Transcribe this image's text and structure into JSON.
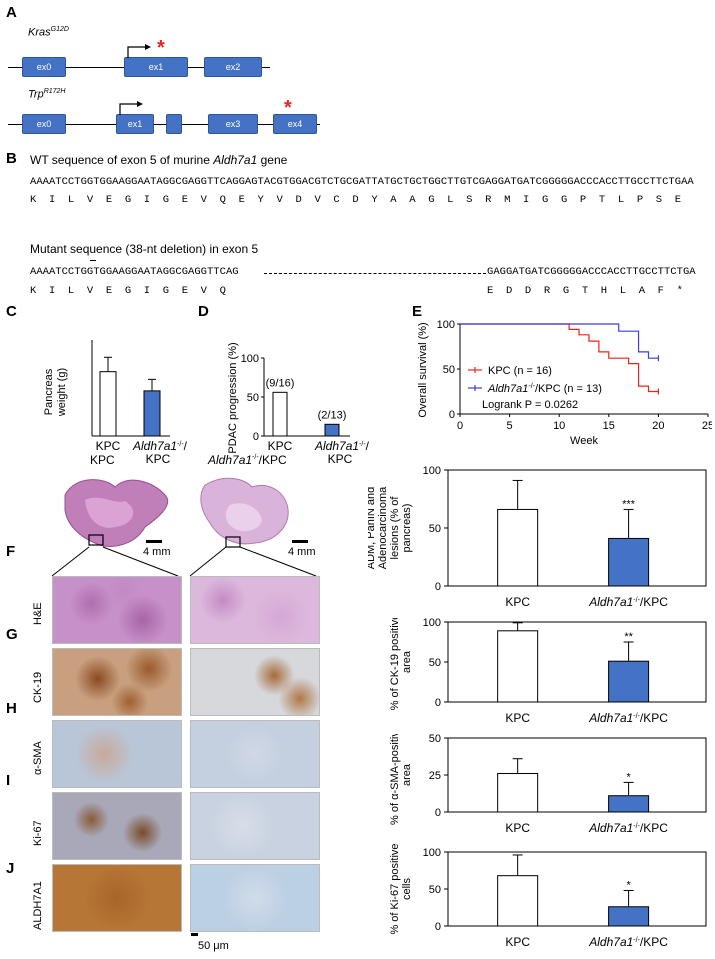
{
  "panels": {
    "A": "A",
    "B": "B",
    "C": "C",
    "D": "D",
    "E": "E",
    "F": "F",
    "G": "G",
    "H": "H",
    "I": "I",
    "J": "J"
  },
  "gene_a": {
    "kras_label": "Kras",
    "kras_sup": "G12D",
    "kras_exons": [
      "ex0",
      "ex1",
      "ex2"
    ],
    "trp_label": "Trp",
    "trp_sup": "R172H",
    "trp_exons": [
      "ex0",
      "ex1",
      "",
      "ex3",
      "ex4"
    ],
    "mutation_color": "#e8241c",
    "exon_color": "#4472c4"
  },
  "sequence_b": {
    "wt_title_pre": "WT sequence of exon 5 of murine ",
    "wt_title_gene": "Aldh7a1",
    "wt_title_post": " gene",
    "wt_dna": "AAAATCCTGGTGGAAGGAATAGGCGAGGTTCAGGAGTACGTGGACGTCTGCGATTATGCTGCTGGCTTGTCGAGGATGATCGGGGGACCCACCTTGCCTTCTGAA",
    "wt_aa": "K  I  L  V  E  G  I  G  E  V  Q  E  Y  V  D  V  C  D  Y  A  A  G  L  S  R  M  I  G  G  P  T  L  P  S  E",
    "mut_title": "Mutant sequence (38-nt deletion) in exon 5",
    "mut_dna_left": "AAAATCCTGGTGGAAGGAATAGGCGAGGTTCAG",
    "mut_dna_right": "GAGGATGATCGGGGGACCCACCTTGCCTTCTGA",
    "mut_aa_left": "K  I  L  V  E  G  I  G  E  V  Q",
    "mut_aa_right": "E  D  D  R  G  T  H  L  A  F  *"
  },
  "histology": {
    "col1": "KPC",
    "col2_gene": "Aldh7a1",
    "col2_sup": "-/-",
    "col2_post": "/KPC",
    "scale_mm": "4 mm",
    "scale_um": "50 μm",
    "rows": [
      "H&E",
      "CK-19",
      "α-SMA",
      "Ki-67",
      "ALDH7A1"
    ]
  },
  "chart_data": [
    {
      "id": "C",
      "type": "bar",
      "categories": [
        "KPC",
        "Aldh7a1-/-/KPC"
      ],
      "values": [
        0.67,
        0.47
      ],
      "errors": [
        0.15,
        0.12
      ],
      "ylabel": "Pancreas weight (g)",
      "ylim": [
        0,
        1
      ],
      "fills": [
        "#ffffff",
        "#4472c4"
      ]
    },
    {
      "id": "D",
      "type": "bar",
      "categories": [
        "KPC",
        "Aldh7a1-/-/KPC"
      ],
      "values": [
        56,
        15
      ],
      "labels": [
        "(9/16)",
        "(2/13)"
      ],
      "ylabel": "PDAC progression (%)",
      "ylim": [
        0,
        100
      ],
      "yticks": [
        0,
        50,
        100
      ],
      "fills": [
        "#ffffff",
        "#4472c4"
      ]
    },
    {
      "id": "E",
      "type": "line",
      "xlabel": "Week",
      "ylabel": "Overall survival (%)",
      "xlim": [
        0,
        25
      ],
      "ylim": [
        0,
        100
      ],
      "xticks": [
        0,
        5,
        10,
        15,
        20,
        25
      ],
      "yticks": [
        0,
        50,
        100
      ],
      "series": [
        {
          "name": "KPC (n = 16)",
          "color": "#e8241c",
          "x": [
            0,
            11,
            11,
            12,
            12,
            13,
            13,
            14,
            14,
            15,
            15,
            17,
            17,
            18,
            18,
            19,
            19,
            20
          ],
          "y": [
            100,
            100,
            94,
            94,
            88,
            88,
            81,
            81,
            69,
            69,
            62,
            62,
            56,
            56,
            31,
            31,
            25,
            25
          ]
        },
        {
          "name": "Aldh7a1-/-/KPC (n = 13)",
          "color": "#3b3fd8",
          "x": [
            0,
            16,
            16,
            18,
            18,
            19,
            19,
            20
          ],
          "y": [
            100,
            100,
            92,
            92,
            69,
            69,
            62,
            62
          ]
        }
      ],
      "annotation": "Logrank P = 0.0262"
    },
    {
      "id": "F",
      "type": "bar",
      "categories": [
        "KPC",
        "Aldh7a1-/-/KPC"
      ],
      "values": [
        66,
        41
      ],
      "errors": [
        25,
        25
      ],
      "sig": [
        "",
        "***"
      ],
      "ylabel": "ADM, PanIN and Adenocarcinoma lesions (% of pancreas)",
      "ylim": [
        0,
        100
      ],
      "yticks": [
        0,
        50,
        100
      ]
    },
    {
      "id": "G",
      "type": "bar",
      "categories": [
        "KPC",
        "Aldh7a1-/-/KPC"
      ],
      "values": [
        89,
        51
      ],
      "errors": [
        10,
        24
      ],
      "sig": [
        "",
        "**"
      ],
      "ylabel": "% of CK-19 positive area",
      "ylim": [
        0,
        100
      ],
      "yticks": [
        0,
        50,
        100
      ]
    },
    {
      "id": "H",
      "type": "bar",
      "categories": [
        "KPC",
        "Aldh7a1-/-/KPC"
      ],
      "values": [
        26,
        11
      ],
      "errors": [
        10,
        9
      ],
      "sig": [
        "",
        "*"
      ],
      "ylabel": "% of α-SMA-positive area",
      "ylim": [
        0,
        50
      ],
      "yticks": [
        0,
        25,
        50
      ]
    },
    {
      "id": "J",
      "type": "bar",
      "categories": [
        "KPC",
        "Aldh7a1-/-/KPC"
      ],
      "values": [
        68,
        26
      ],
      "errors": [
        28,
        22
      ],
      "sig": [
        "",
        "*"
      ],
      "ylabel": "% of Ki-67 positive cells",
      "ylim": [
        0,
        100
      ],
      "yticks": [
        0,
        50,
        100
      ]
    }
  ]
}
